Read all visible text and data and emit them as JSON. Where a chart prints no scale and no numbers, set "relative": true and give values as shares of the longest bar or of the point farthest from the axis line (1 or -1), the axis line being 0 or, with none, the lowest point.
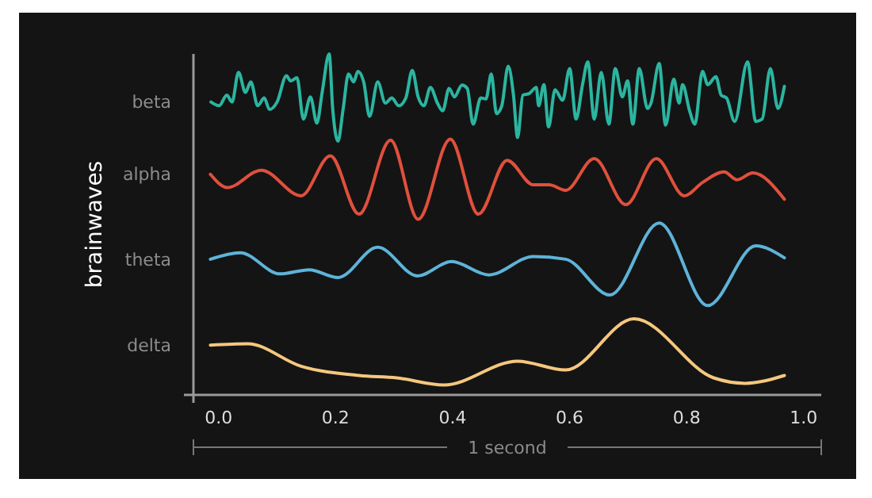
{
  "chart_data": {
    "type": "line",
    "relative": true,
    "ylabel": "brainwaves",
    "xlabel": "1 second",
    "xlim": [
      -0.043,
      1.03
    ],
    "xticks": [
      {
        "value": 0,
        "label": "0.0"
      },
      {
        "value": 0.2,
        "label": "0.2"
      },
      {
        "value": 0.4,
        "label": "0.4"
      },
      {
        "value": 0.6,
        "label": "0.6"
      },
      {
        "value": 0.8,
        "label": "0.8"
      },
      {
        "value": 1,
        "label": "1.0"
      }
    ],
    "grid": false,
    "legend": false,
    "marker": "none",
    "line_style": "solid",
    "series": [
      {
        "name": "beta",
        "color": "#2bb5a0",
        "x": [
          -0.013,
          0.001,
          0.014,
          0.023,
          0.034,
          0.046,
          0.055,
          0.067,
          0.078,
          0.087,
          0.1,
          0.116,
          0.123,
          0.134,
          0.145,
          0.157,
          0.168,
          0.177,
          0.189,
          0.195,
          0.204,
          0.213,
          0.222,
          0.231,
          0.238,
          0.248,
          0.258,
          0.272,
          0.285,
          0.296,
          0.308,
          0.32,
          0.331,
          0.341,
          0.351,
          0.362,
          0.374,
          0.383,
          0.394,
          0.403,
          0.416,
          0.425,
          0.435,
          0.448,
          0.457,
          0.466,
          0.475,
          0.484,
          0.495,
          0.504,
          0.511,
          0.52,
          0.531,
          0.543,
          0.547,
          0.556,
          0.564,
          0.575,
          0.588,
          0.6,
          0.611,
          0.622,
          0.631,
          0.642,
          0.654,
          0.667,
          0.678,
          0.69,
          0.699,
          0.708,
          0.719,
          0.733,
          0.739,
          0.753,
          0.764,
          0.778,
          0.787,
          0.793,
          0.805,
          0.814,
          0.827,
          0.836,
          0.85,
          0.859,
          0.868,
          0.882,
          0.904,
          0.918,
          0.929,
          0.943,
          0.956,
          0.967
        ],
        "values": [
          0.859,
          0.848,
          0.879,
          0.859,
          0.946,
          0.887,
          0.918,
          0.848,
          0.871,
          0.837,
          0.859,
          0.936,
          0.921,
          0.93,
          0.809,
          0.874,
          0.797,
          0.887,
          1,
          0.84,
          0.744,
          0.84,
          0.941,
          0.918,
          0.949,
          0.918,
          0.817,
          0.918,
          0.856,
          0.871,
          0.848,
          0.871,
          0.952,
          0.874,
          0.848,
          0.902,
          0.856,
          0.833,
          0.899,
          0.874,
          0.909,
          0.899,
          0.794,
          0.871,
          0.868,
          0.941,
          0.825,
          0.848,
          0.964,
          0.879,
          0.755,
          0.879,
          0.884,
          0.902,
          0.848,
          0.91,
          0.786,
          0.895,
          0.864,
          0.957,
          0.809,
          0.91,
          0.977,
          0.809,
          0.946,
          0.794,
          0.957,
          0.874,
          0.921,
          0.794,
          0.957,
          0.84,
          0.856,
          0.972,
          0.791,
          0.926,
          0.856,
          0.91,
          0.833,
          0.794,
          0.949,
          0.91,
          0.933,
          0.879,
          0.871,
          0.802,
          0.977,
          0.802,
          0.809,
          0.957,
          0.84,
          0.905
        ]
      },
      {
        "name": "alpha",
        "color": "#e0503c",
        "x": [
          -0.014,
          0.015,
          0.073,
          0.141,
          0.191,
          0.24,
          0.294,
          0.341,
          0.396,
          0.444,
          0.493,
          0.538,
          0.565,
          0.593,
          0.642,
          0.696,
          0.748,
          0.796,
          0.827,
          0.864,
          0.886,
          0.913,
          0.967
        ],
        "values": [
          0.647,
          0.608,
          0.659,
          0.584,
          0.701,
          0.53,
          0.747,
          0.515,
          0.75,
          0.53,
          0.688,
          0.616,
          0.616,
          0.6,
          0.693,
          0.558,
          0.693,
          0.584,
          0.623,
          0.654,
          0.631,
          0.651,
          0.574
        ]
      },
      {
        "name": "theta",
        "color": "#5eb3d8",
        "x": [
          -0.014,
          0.037,
          0.105,
          0.155,
          0.204,
          0.272,
          0.34,
          0.398,
          0.462,
          0.538,
          0.593,
          0.669,
          0.753,
          0.836,
          0.918,
          0.967
        ],
        "values": [
          0.398,
          0.417,
          0.355,
          0.367,
          0.344,
          0.433,
          0.349,
          0.391,
          0.352,
          0.406,
          0.398,
          0.293,
          0.504,
          0.262,
          0.437,
          0.402
        ]
      },
      {
        "name": "delta",
        "color": "#f5c77e",
        "x": [
          -0.014,
          0.05,
          0.141,
          0.24,
          0.304,
          0.385,
          0.511,
          0.593,
          0.71,
          0.846,
          0.9,
          0.967
        ],
        "values": [
          0.146,
          0.15,
          0.084,
          0.057,
          0.05,
          0.029,
          0.099,
          0.073,
          0.223,
          0.05,
          0.034,
          0.057
        ]
      }
    ]
  }
}
